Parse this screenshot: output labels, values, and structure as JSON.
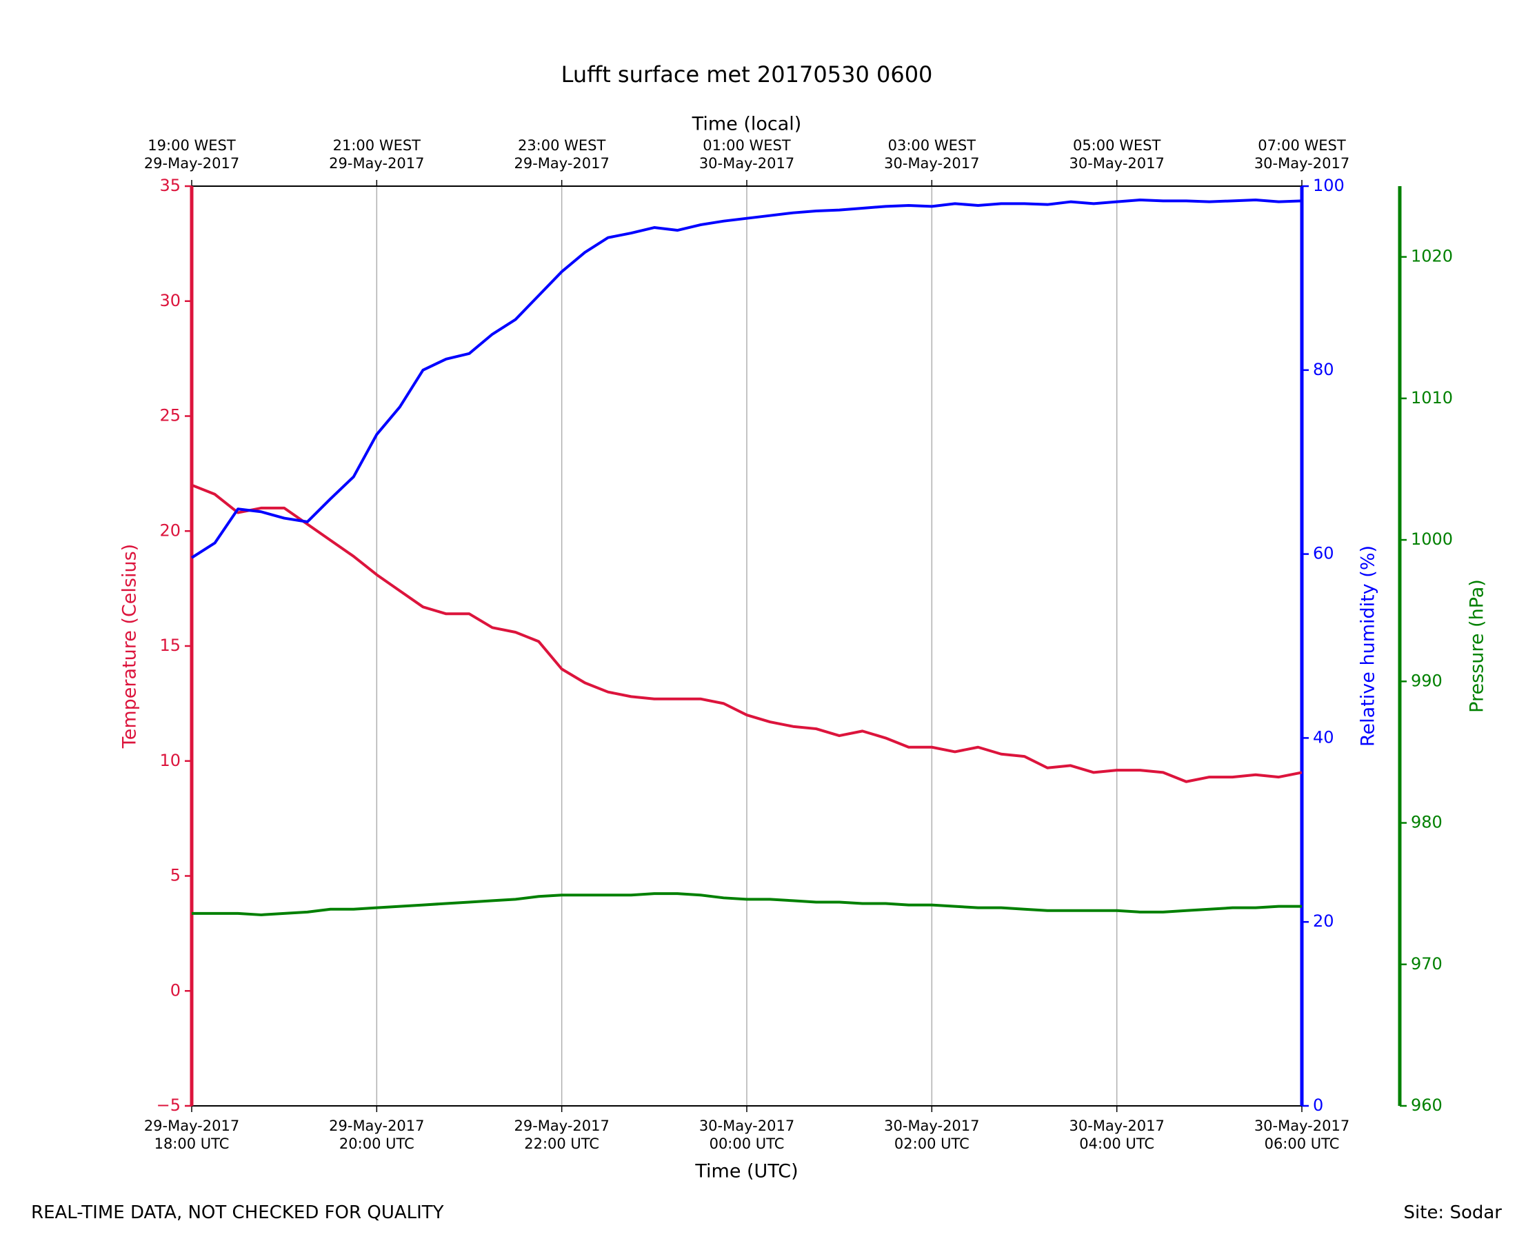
{
  "chart_data": {
    "type": "line",
    "title": "Lufft surface met 20170530 0600",
    "xlabel": "Time (UTC)",
    "x2label": "Time (local)",
    "ylabel": "Temperature (Celsius)",
    "y2label": "Relative humidity (%)",
    "y3label": "Pressure (hPa)",
    "annotations": [
      "REAL-TIME DATA, NOT CHECKED FOR QUALITY",
      "Site: Sodar"
    ],
    "grid": true,
    "x": [
      "2017-05-29T18:00",
      "2017-05-29T18:15",
      "2017-05-29T18:30",
      "2017-05-29T18:45",
      "2017-05-29T19:00",
      "2017-05-29T19:15",
      "2017-05-29T19:30",
      "2017-05-29T19:45",
      "2017-05-29T20:00",
      "2017-05-29T20:15",
      "2017-05-29T20:30",
      "2017-05-29T20:45",
      "2017-05-29T21:00",
      "2017-05-29T21:15",
      "2017-05-29T21:30",
      "2017-05-29T21:45",
      "2017-05-29T22:00",
      "2017-05-29T22:15",
      "2017-05-29T22:30",
      "2017-05-29T22:45",
      "2017-05-29T23:00",
      "2017-05-29T23:15",
      "2017-05-29T23:30",
      "2017-05-29T23:45",
      "2017-05-30T00:00",
      "2017-05-30T00:15",
      "2017-05-30T00:30",
      "2017-05-30T00:45",
      "2017-05-30T01:00",
      "2017-05-30T01:15",
      "2017-05-30T01:30",
      "2017-05-30T01:45",
      "2017-05-30T02:00",
      "2017-05-30T02:15",
      "2017-05-30T02:30",
      "2017-05-30T02:45",
      "2017-05-30T03:00",
      "2017-05-30T03:15",
      "2017-05-30T03:30",
      "2017-05-30T03:45",
      "2017-05-30T04:00",
      "2017-05-30T04:15",
      "2017-05-30T04:30",
      "2017-05-30T04:45",
      "2017-05-30T05:00",
      "2017-05-30T05:15",
      "2017-05-30T05:30",
      "2017-05-30T05:45",
      "2017-05-30T06:00"
    ],
    "xlim": [
      "2017-05-29T18:00",
      "2017-05-30T06:00"
    ],
    "xticks": [
      {
        "value": "2017-05-29T18:00",
        "label": "29-May-2017\n18:00 UTC"
      },
      {
        "value": "2017-05-29T20:00",
        "label": "29-May-2017\n20:00 UTC"
      },
      {
        "value": "2017-05-29T22:00",
        "label": "29-May-2017\n22:00 UTC"
      },
      {
        "value": "2017-05-30T00:00",
        "label": "30-May-2017\n00:00 UTC"
      },
      {
        "value": "2017-05-30T02:00",
        "label": "30-May-2017\n02:00 UTC"
      },
      {
        "value": "2017-05-30T04:00",
        "label": "30-May-2017\n04:00 UTC"
      },
      {
        "value": "2017-05-30T06:00",
        "label": "30-May-2017\n06:00 UTC"
      }
    ],
    "x2ticks": [
      {
        "value": "2017-05-29T18:00",
        "label": "19:00 WEST\n29-May-2017"
      },
      {
        "value": "2017-05-29T20:00",
        "label": "21:00 WEST\n29-May-2017"
      },
      {
        "value": "2017-05-29T22:00",
        "label": "23:00 WEST\n29-May-2017"
      },
      {
        "value": "2017-05-30T00:00",
        "label": "01:00 WEST\n30-May-2017"
      },
      {
        "value": "2017-05-30T02:00",
        "label": "03:00 WEST\n30-May-2017"
      },
      {
        "value": "2017-05-30T04:00",
        "label": "05:00 WEST\n30-May-2017"
      },
      {
        "value": "2017-05-30T06:00",
        "label": "07:00 WEST\n30-May-2017"
      }
    ],
    "ylim": [
      -5,
      35
    ],
    "yticks": [
      {
        "value": -5,
        "label": "−5"
      },
      0,
      5,
      10,
      15,
      20,
      25,
      30,
      35
    ],
    "y2lim": [
      0,
      100
    ],
    "y2ticks": [
      0,
      20,
      40,
      60,
      80,
      100
    ],
    "y3lim": [
      960,
      1025
    ],
    "y3ticks": [
      960,
      970,
      980,
      990,
      1000,
      1010,
      1020
    ],
    "series": [
      {
        "color": "#dc143c",
        "axis": "y",
        "values": [
          22.0,
          21.6,
          20.8,
          21.0,
          21.0,
          20.3,
          19.6,
          18.9,
          18.1,
          17.4,
          16.7,
          16.4,
          16.4,
          15.8,
          15.6,
          15.2,
          14.0,
          13.4,
          13.0,
          12.8,
          12.7,
          12.7,
          12.7,
          12.5,
          12.0,
          11.7,
          11.5,
          11.4,
          11.1,
          11.3,
          11.0,
          10.6,
          10.6,
          10.4,
          10.6,
          10.3,
          10.2,
          9.7,
          9.8,
          9.5,
          9.6,
          9.6,
          9.5,
          9.1,
          9.3,
          9.3,
          9.4,
          9.3,
          9.5
        ]
      },
      {
        "color": "#0000ff",
        "axis": "y2",
        "values": [
          59.6,
          61.2,
          64.9,
          64.6,
          63.9,
          63.5,
          66.0,
          68.4,
          73.0,
          76.0,
          80.0,
          81.2,
          81.8,
          83.9,
          85.5,
          88.1,
          90.7,
          92.8,
          94.4,
          94.9,
          95.5,
          95.2,
          95.8,
          96.2,
          96.5,
          96.8,
          97.1,
          97.3,
          97.4,
          97.6,
          97.8,
          97.9,
          97.8,
          98.1,
          97.9,
          98.1,
          98.1,
          98.0,
          98.3,
          98.1,
          98.3,
          98.5,
          98.4,
          98.4,
          98.3,
          98.4,
          98.5,
          98.3,
          98.4
        ]
      },
      {
        "color": "#008000",
        "axis": "y3",
        "values": [
          973.6,
          973.6,
          973.6,
          973.5,
          973.6,
          973.7,
          973.9,
          973.9,
          974.0,
          974.1,
          974.2,
          974.3,
          974.4,
          974.5,
          974.6,
          974.8,
          974.9,
          974.9,
          974.9,
          974.9,
          975.0,
          975.0,
          974.9,
          974.7,
          974.6,
          974.6,
          974.5,
          974.4,
          974.4,
          974.3,
          974.3,
          974.2,
          974.2,
          974.1,
          974.0,
          974.0,
          973.9,
          973.8,
          973.8,
          973.8,
          973.8,
          973.7,
          973.7,
          973.8,
          973.9,
          974.0,
          974.0,
          974.1,
          974.1
        ]
      }
    ]
  }
}
